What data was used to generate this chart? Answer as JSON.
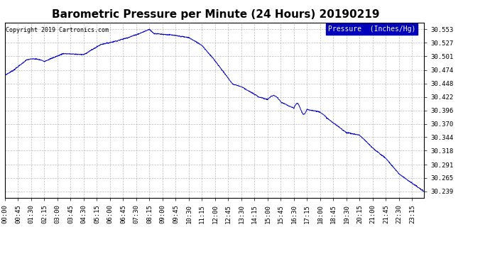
{
  "title": "Barometric Pressure per Minute (24 Hours) 20190219",
  "copyright": "Copyright 2019 Cartronics.com",
  "legend_label": "Pressure  (Inches/Hg)",
  "yticks": [
    30.239,
    30.265,
    30.291,
    30.318,
    30.344,
    30.37,
    30.396,
    30.422,
    30.448,
    30.474,
    30.501,
    30.527,
    30.553
  ],
  "ymin": 30.226,
  "ymax": 30.566,
  "line_color": "#0000cc",
  "background_color": "#ffffff",
  "grid_color": "#aaaaaa",
  "title_fontsize": 11,
  "tick_fontsize": 6.5,
  "copyright_fontsize": 6,
  "xtick_labels": [
    "00:00",
    "00:45",
    "01:30",
    "02:15",
    "03:00",
    "03:45",
    "04:30",
    "05:15",
    "06:00",
    "06:45",
    "07:30",
    "08:15",
    "09:00",
    "09:45",
    "10:30",
    "11:15",
    "12:00",
    "12:45",
    "13:30",
    "14:15",
    "15:00",
    "15:45",
    "16:30",
    "17:15",
    "18:00",
    "18:45",
    "19:30",
    "20:15",
    "21:00",
    "21:45",
    "22:30",
    "23:15"
  ],
  "time_points": [
    0,
    45,
    90,
    135,
    180,
    225,
    270,
    315,
    360,
    405,
    450,
    495,
    540,
    585,
    630,
    675,
    720,
    765,
    810,
    855,
    900,
    945,
    990,
    1035,
    1080,
    1125,
    1170,
    1215,
    1260,
    1305,
    1350,
    1395
  ],
  "legend_facecolor": "#0000bb",
  "legend_textcolor": "#ffffff"
}
